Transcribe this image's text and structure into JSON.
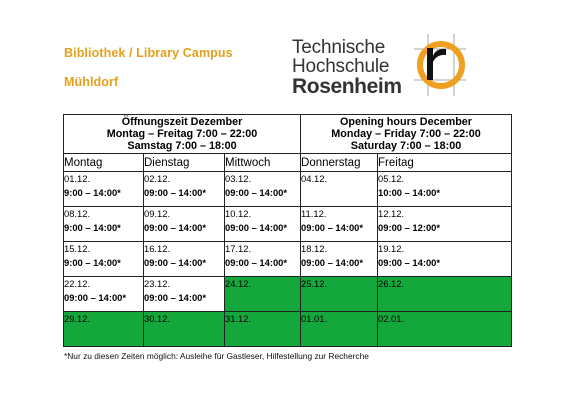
{
  "header": {
    "title_line1": "Bibliothek / Library Campus",
    "title_line2": "Mühldorf"
  },
  "logo": {
    "line1": "Technische",
    "line2": "Hochschule",
    "line3": "Rosenheim",
    "accent_color": "#f0a020"
  },
  "hours_table": {
    "german": {
      "heading": "Öffnungszeit Dezember",
      "weekday_hours": "Montag – Freitag 7:00 – 22:00",
      "saturday_hours": "Samstag 7:00 – 18:00"
    },
    "english": {
      "heading": "Opening hours December",
      "weekday_hours": "Monday – Friday 7:00 –  22:00",
      "saturday_hours": "Saturday 7:00 – 18:00"
    },
    "days": [
      "Montag",
      "Dienstag",
      "Mittwoch",
      "Donnerstag",
      "Freitag"
    ],
    "weeks": [
      [
        {
          "date": "01.12.",
          "hours": "9:00 – 14:00*"
        },
        {
          "date": "02.12.",
          "hours": "09:00 – 14:00*"
        },
        {
          "date": "03.12.",
          "hours": "09:00 – 14:00*"
        },
        {
          "date": "04.12.",
          "hours": ""
        },
        {
          "date": "05.12.",
          "hours": "10:00 – 14:00*"
        }
      ],
      [
        {
          "date": "08.12.",
          "hours": "9:00 – 14:00*"
        },
        {
          "date": "09.12.",
          "hours": "09:00 – 14:00*"
        },
        {
          "date": "10.12.",
          "hours": "09:00 – 14:00*"
        },
        {
          "date": "11.12.",
          "hours": "09:00 – 14:00*"
        },
        {
          "date": "12.12.",
          "hours": "09:00 – 12:00*"
        }
      ],
      [
        {
          "date": "15.12.",
          "hours": "9:00 – 14:00*"
        },
        {
          "date": "16.12.",
          "hours": "09:00 – 14:00*"
        },
        {
          "date": "17.12.",
          "hours": "09:00 – 14:00*"
        },
        {
          "date": "18.12.",
          "hours": "09:00 – 14:00*"
        },
        {
          "date": "19.12.",
          "hours": "09:00 – 14:00*"
        }
      ],
      [
        {
          "date": "22.12.",
          "hours": "09:00 – 14:00*"
        },
        {
          "date": "23.12.",
          "hours": "09:00 – 14:00*"
        },
        {
          "date": "24.12.",
          "hours": "",
          "closed": true
        },
        {
          "date": "25.12.",
          "hours": "",
          "closed": true
        },
        {
          "date": "26.12.",
          "hours": "",
          "closed": true
        }
      ],
      [
        {
          "date": "29.12.",
          "hours": "",
          "closed": true
        },
        {
          "date": "30.12.",
          "hours": "",
          "closed": true
        },
        {
          "date": "31.12.",
          "hours": "",
          "closed": true
        },
        {
          "date": "01.01.",
          "hours": "",
          "closed": true
        },
        {
          "date": "02.01.",
          "hours": "",
          "closed": true
        }
      ]
    ],
    "closed_color": "#14a73c"
  },
  "footnote": "*Nur zu diesen Zeiten möglich: Ausleihe für Gastleser, Hilfestellung zur Recherche"
}
